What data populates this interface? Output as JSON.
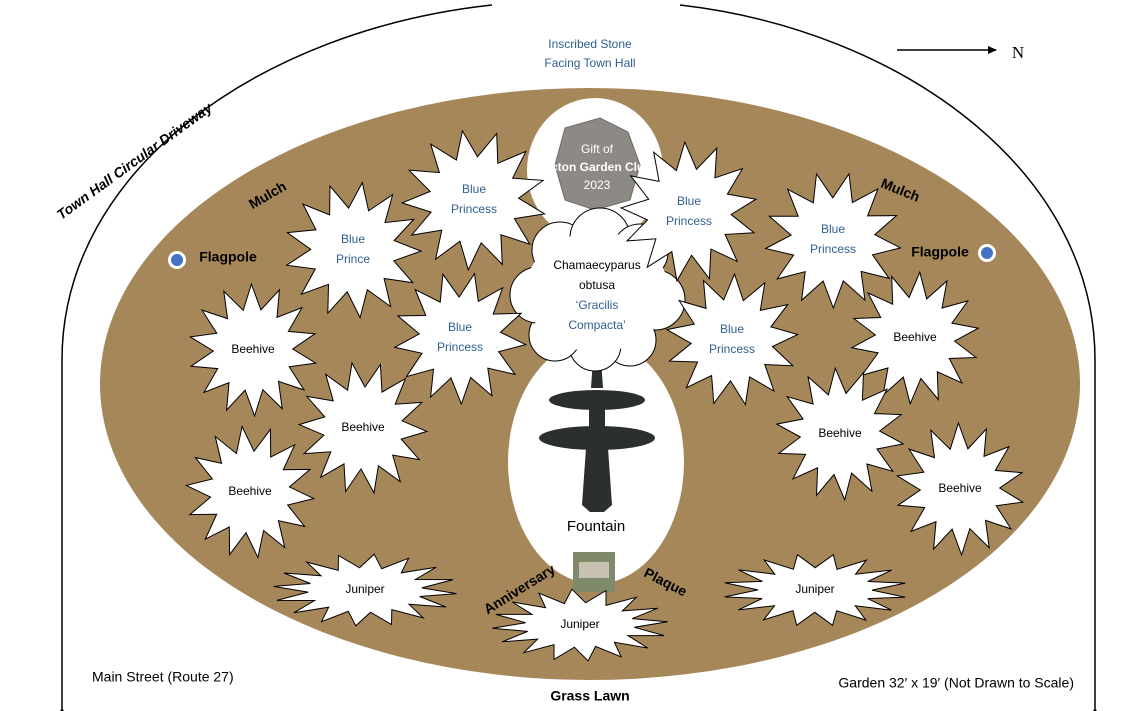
{
  "north_label": "N",
  "driveway_label": "Town Hall Circular Driveway",
  "stone_caption": [
    "Inscribed Stone",
    "Facing Town Hall"
  ],
  "stone_inscription": [
    "Gift of",
    "Acton Garden Club",
    "2023"
  ],
  "mulch_labels": [
    "Mulch",
    "Mulch"
  ],
  "flagpole_labels": [
    "Flagpole",
    "Flagpole"
  ],
  "shrub_label": [
    "Chamaecyparus",
    "obtusa",
    "‘Gracilis",
    "Compacta’"
  ],
  "plants": [
    {
      "label": [
        "Blue",
        "Princess"
      ]
    },
    {
      "label": [
        "Blue",
        "Prince"
      ]
    },
    {
      "label": [
        "Blue",
        "Princess"
      ]
    },
    {
      "label": [
        "Blue",
        "Princess"
      ]
    },
    {
      "label": [
        "Blue",
        "Princess"
      ]
    },
    {
      "label": [
        "Blue",
        "Princess"
      ]
    },
    {
      "label": [
        "Beehive"
      ]
    },
    {
      "label": [
        "Beehive"
      ]
    },
    {
      "label": [
        "Beehive"
      ]
    },
    {
      "label": [
        "Beehive"
      ]
    },
    {
      "label": [
        "Beehive"
      ]
    },
    {
      "label": [
        "Beehive"
      ]
    },
    {
      "label": [
        "Juniper"
      ]
    },
    {
      "label": [
        "Juniper"
      ]
    },
    {
      "label": [
        "Juniper"
      ]
    }
  ],
  "fountain_label": "Fountain",
  "plaque_labels": [
    "Anniversary",
    "Plaque"
  ],
  "street_label": "Main Street (Route 27)",
  "lawn_label": "Grass Lawn",
  "size_note": "Garden 32′ x 19′ (Not Drawn to Scale)"
}
